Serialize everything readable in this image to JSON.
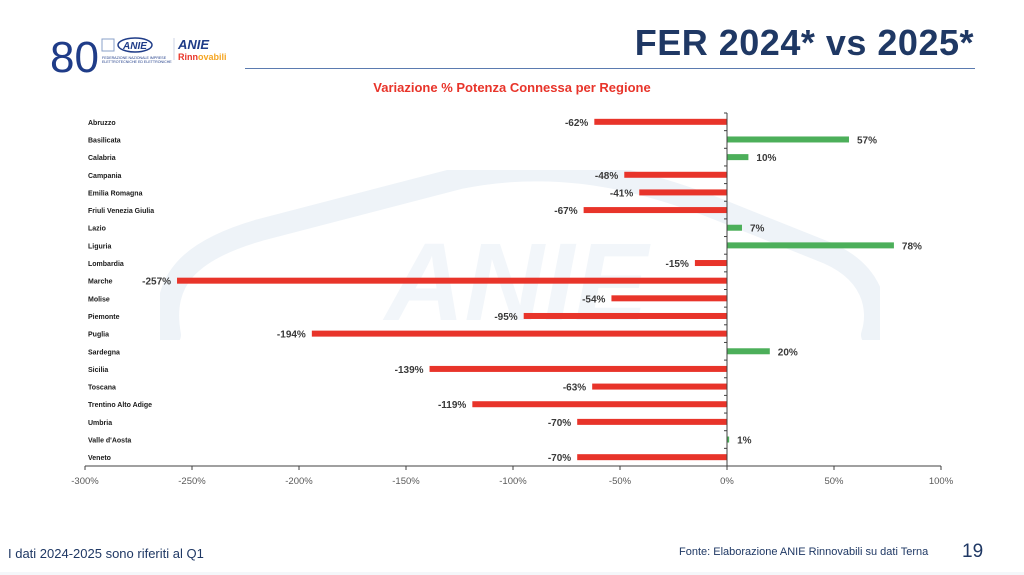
{
  "header": {
    "title": "FER 2024* vs 2025*",
    "logo": {
      "anniversary": "80",
      "anie": "ANIE",
      "federation_line1": "FEDERAZIONE NAZIONALE IMPRESE",
      "federation_line2": "ELETTROTECNICHE ED ELETTRONICHE",
      "brand_top": "ANIE",
      "brand_bottom_a": "Rinn",
      "brand_bottom_b": "ovabili"
    }
  },
  "watermark_text": "ANIE",
  "footer": {
    "note": "I dati 2024-2025 sono riferiti al Q1",
    "source": "Fonte: Elaborazione ANIE Rinnovabili su dati Terna",
    "page_number": "19"
  },
  "colors": {
    "negative": "#e8342a",
    "positive": "#4caf5a",
    "title": "#1f3864",
    "axis": "#404040"
  },
  "chart_data": {
    "type": "bar",
    "orientation": "horizontal",
    "title": "Variazione % Potenza Connessa per Regione",
    "xlabel": "",
    "ylabel": "",
    "xlim": [
      -300,
      100
    ],
    "x_ticks": [
      -300,
      -250,
      -200,
      -150,
      -100,
      -50,
      0,
      50,
      100
    ],
    "x_tick_labels": [
      "-300%",
      "-250%",
      "-200%",
      "-150%",
      "-100%",
      "-50%",
      "0%",
      "50%",
      "100%"
    ],
    "grid": false,
    "legend": "none",
    "categories": [
      "Abruzzo",
      "Basilicata",
      "Calabria",
      "Campania",
      "Emilia Romagna",
      "Friuli Venezia Giulia",
      "Lazio",
      "Liguria",
      "Lombardia",
      "Marche",
      "Molise",
      "Piemonte",
      "Puglia",
      "Sardegna",
      "Sicilia",
      "Toscana",
      "Trentino Alto Adige",
      "Umbria",
      "Valle d'Aosta",
      "Veneto"
    ],
    "values": [
      -62,
      57,
      10,
      -48,
      -41,
      -67,
      7,
      78,
      -15,
      -257,
      -54,
      -95,
      -194,
      20,
      -139,
      -63,
      -119,
      -70,
      1,
      -70
    ],
    "value_labels": [
      "-62%",
      "57%",
      "10%",
      "-48%",
      "-41%",
      "-67%",
      "7%",
      "78%",
      "-15%",
      "-257%",
      "-54%",
      "-95%",
      "-194%",
      "20%",
      "-139%",
      "-63%",
      "-119%",
      "-70%",
      "1%",
      "-70%"
    ]
  }
}
